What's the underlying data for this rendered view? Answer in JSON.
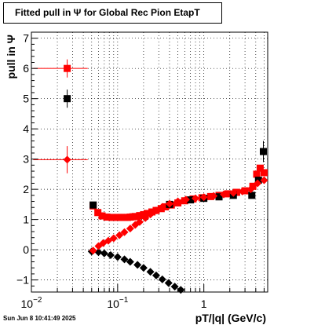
{
  "title": "Fitted pull in  Ψ  for Global Rec Pion EtapT",
  "timestamp": "Sun Jun  8 10:41:49 2025",
  "chart_data": {
    "type": "scatter",
    "title": "Fitted pull in  Ψ  for Global Rec Pion EtapT",
    "xlabel": "pT/|q| (GeV/c)",
    "ylabel": "pull in  Ψ",
    "xscale": "log",
    "xlim": [
      0.01,
      5.5
    ],
    "ylim": [
      -1.4,
      7.2
    ],
    "grid": true,
    "x_ticks": [
      {
        "value": 0.01,
        "base": "10",
        "exp": "−2"
      },
      {
        "value": 0.1,
        "base": "10",
        "exp": "−1"
      },
      {
        "value": 1,
        "base": "1",
        "exp": ""
      }
    ],
    "y_ticks": [
      "−1",
      "0",
      "1",
      "2",
      "3",
      "4",
      "5",
      "6",
      "7"
    ],
    "y_tick_values": [
      -1,
      0,
      1,
      2,
      3,
      4,
      5,
      6,
      7
    ],
    "colors": {
      "sigma": "#ff0000",
      "mean_black": "#000000",
      "mean_red": "#ff0000"
    },
    "series": [
      {
        "marker": "square",
        "color": "#ff0000",
        "points": [
          {
            "x": 0.026,
            "y": 6.0,
            "ey": 0.3,
            "xerr": [
              0.0105,
              0.045
            ]
          },
          {
            "x": 0.052,
            "y": 1.45
          },
          {
            "x": 0.059,
            "y": 1.23
          },
          {
            "x": 0.066,
            "y": 1.12
          },
          {
            "x": 0.075,
            "y": 1.08
          },
          {
            "x": 0.086,
            "y": 1.07
          },
          {
            "x": 0.1,
            "y": 1.07
          },
          {
            "x": 0.11,
            "y": 1.07
          },
          {
            "x": 0.12,
            "y": 1.07
          },
          {
            "x": 0.13,
            "y": 1.07
          },
          {
            "x": 0.14,
            "y": 1.08
          },
          {
            "x": 0.15,
            "y": 1.09
          },
          {
            "x": 0.16,
            "y": 1.1
          },
          {
            "x": 0.18,
            "y": 1.13
          },
          {
            "x": 0.2,
            "y": 1.16
          },
          {
            "x": 0.22,
            "y": 1.2
          },
          {
            "x": 0.25,
            "y": 1.25
          },
          {
            "x": 0.28,
            "y": 1.3
          },
          {
            "x": 0.32,
            "y": 1.36
          },
          {
            "x": 0.36,
            "y": 1.42
          },
          {
            "x": 0.42,
            "y": 1.48
          },
          {
            "x": 0.5,
            "y": 1.55
          },
          {
            "x": 0.6,
            "y": 1.62
          },
          {
            "x": 0.75,
            "y": 1.68
          },
          {
            "x": 0.95,
            "y": 1.72
          },
          {
            "x": 1.2,
            "y": 1.76
          },
          {
            "x": 1.5,
            "y": 1.8
          },
          {
            "x": 1.9,
            "y": 1.85
          },
          {
            "x": 2.4,
            "y": 1.9
          },
          {
            "x": 3.0,
            "y": 1.95
          },
          {
            "x": 3.7,
            "y": 2.1
          },
          {
            "x": 4.1,
            "y": 2.5
          },
          {
            "x": 4.5,
            "y": 2.7
          },
          {
            "x": 5.0,
            "y": 2.55
          }
        ]
      },
      {
        "marker": "square",
        "color": "#000000",
        "points": [
          {
            "x": 0.026,
            "y": 5.0,
            "ey": 0.3
          },
          {
            "x": 0.052,
            "y": 1.48
          },
          {
            "x": 0.4,
            "y": 1.5
          },
          {
            "x": 0.7,
            "y": 1.65
          },
          {
            "x": 1.0,
            "y": 1.7
          },
          {
            "x": 1.5,
            "y": 1.75
          },
          {
            "x": 2.2,
            "y": 1.8
          },
          {
            "x": 3.6,
            "y": 1.8
          },
          {
            "x": 4.3,
            "y": 2.3
          },
          {
            "x": 4.9,
            "y": 3.25,
            "ey": 0.35
          }
        ]
      },
      {
        "marker": "diamond",
        "color": "#000000",
        "points": [
          {
            "x": 0.05,
            "y": -0.06
          },
          {
            "x": 0.06,
            "y": -0.08
          },
          {
            "x": 0.07,
            "y": -0.12
          },
          {
            "x": 0.083,
            "y": -0.18
          },
          {
            "x": 0.1,
            "y": -0.24
          },
          {
            "x": 0.12,
            "y": -0.32
          },
          {
            "x": 0.14,
            "y": -0.4
          },
          {
            "x": 0.17,
            "y": -0.5
          },
          {
            "x": 0.2,
            "y": -0.6
          },
          {
            "x": 0.24,
            "y": -0.73
          },
          {
            "x": 0.28,
            "y": -0.85
          },
          {
            "x": 0.33,
            "y": -0.98
          },
          {
            "x": 0.39,
            "y": -1.1
          },
          {
            "x": 0.46,
            "y": -1.22
          },
          {
            "x": 0.54,
            "y": -1.33
          }
        ]
      },
      {
        "marker": "diamond",
        "color": "#ff0000",
        "points": [
          {
            "x": 0.026,
            "y": 2.98,
            "ey": 0.45,
            "xerr": [
              0.0105,
              0.045
            ]
          },
          {
            "x": 0.052,
            "y": -0.03
          },
          {
            "x": 0.06,
            "y": 0.12
          },
          {
            "x": 0.068,
            "y": 0.22
          },
          {
            "x": 0.078,
            "y": 0.3
          },
          {
            "x": 0.09,
            "y": 0.38
          },
          {
            "x": 0.105,
            "y": 0.48
          },
          {
            "x": 0.12,
            "y": 0.58
          },
          {
            "x": 0.14,
            "y": 0.7
          },
          {
            "x": 0.16,
            "y": 0.82
          },
          {
            "x": 0.18,
            "y": 0.92
          },
          {
            "x": 0.21,
            "y": 1.05
          },
          {
            "x": 0.24,
            "y": 1.17
          },
          {
            "x": 0.28,
            "y": 1.3
          },
          {
            "x": 0.33,
            "y": 1.42
          },
          {
            "x": 0.4,
            "y": 1.52
          },
          {
            "x": 0.5,
            "y": 1.6
          },
          {
            "x": 0.62,
            "y": 1.66
          },
          {
            "x": 0.8,
            "y": 1.7
          },
          {
            "x": 1.0,
            "y": 1.74
          },
          {
            "x": 1.3,
            "y": 1.78
          },
          {
            "x": 1.7,
            "y": 1.83
          },
          {
            "x": 2.2,
            "y": 1.88
          },
          {
            "x": 2.8,
            "y": 1.93
          },
          {
            "x": 3.5,
            "y": 2.0
          },
          {
            "x": 4.2,
            "y": 2.2
          },
          {
            "x": 5.0,
            "y": 2.3
          }
        ]
      }
    ]
  }
}
